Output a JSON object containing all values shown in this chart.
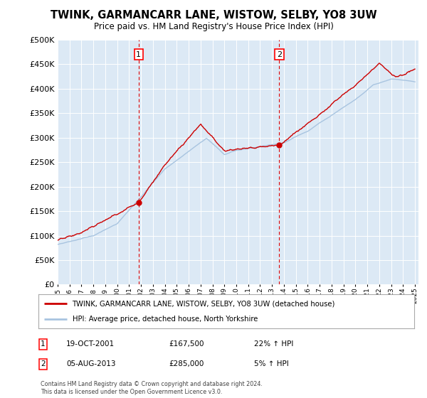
{
  "title": "TWINK, GARMANCARR LANE, WISTOW, SELBY, YO8 3UW",
  "subtitle": "Price paid vs. HM Land Registry's House Price Index (HPI)",
  "background_color": "#dce9f5",
  "sale1_date": 2001.8,
  "sale1_price": 167500,
  "sale2_date": 2013.6,
  "sale2_price": 285000,
  "legend_line1": "TWINK, GARMANCARR LANE, WISTOW, SELBY, YO8 3UW (detached house)",
  "legend_line2": "HPI: Average price, detached house, North Yorkshire",
  "annotation1_label": "1",
  "annotation1_text": "19-OCT-2001",
  "annotation1_price": "£167,500",
  "annotation1_hpi": "22% ↑ HPI",
  "annotation2_label": "2",
  "annotation2_text": "05-AUG-2013",
  "annotation2_price": "£285,000",
  "annotation2_hpi": "5% ↑ HPI",
  "footer": "Contains HM Land Registry data © Crown copyright and database right 2024.\nThis data is licensed under the Open Government Licence v3.0.",
  "hpi_color": "#a8c4e0",
  "sale_color": "#cc0000",
  "vline_color": "#dd0000",
  "grid_color": "#c8d8e8",
  "white": "#ffffff"
}
